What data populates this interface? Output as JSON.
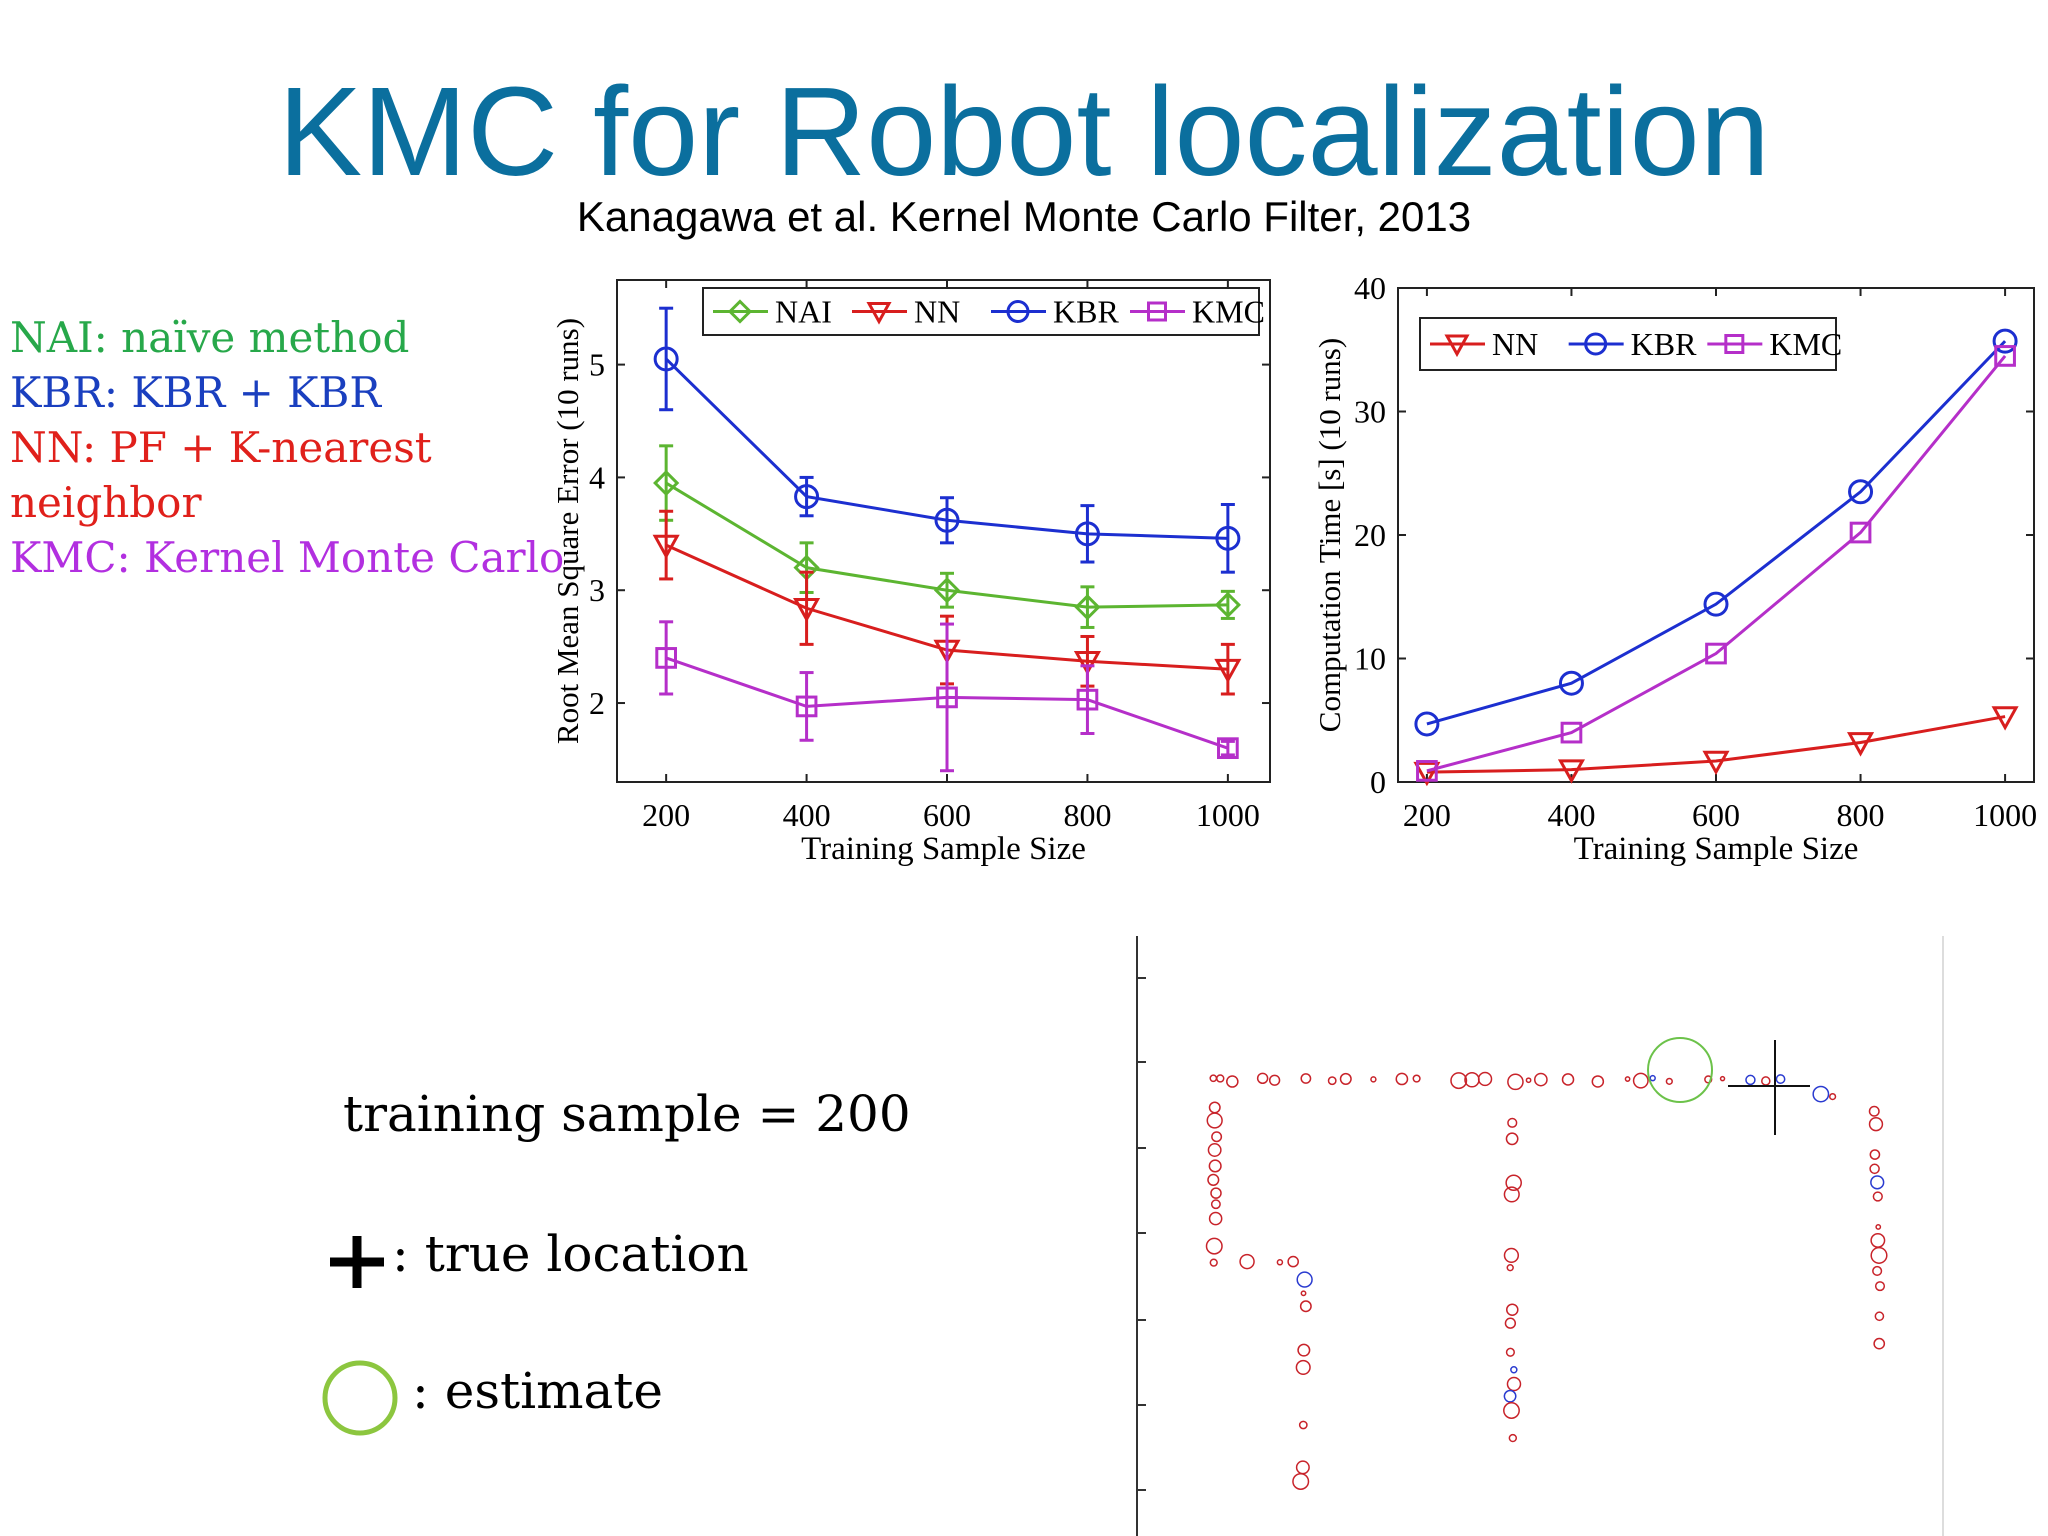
{
  "slide": {
    "title": "KMC for Robot localization",
    "subtitle": "Kanagawa et al. Kernel Monte Carlo Filter, 2013"
  },
  "methods": [
    {
      "text": "NAI:  naïve method",
      "color": "#27a84a"
    },
    {
      "text": " KBR: KBR + KBR",
      "color": "#1a3fbf"
    },
    {
      "text": "NN: PF + K-nearest",
      "color": "#e0201b"
    },
    {
      "text": "neighbor",
      "color": "#e0201b"
    },
    {
      "text": "KMC: Kernel Monte Carlo",
      "color": "#b22fe0"
    }
  ],
  "chart_data": [
    {
      "type": "line",
      "xlabel": "Training Sample Size",
      "ylabel": "Root Mean Square Error (10 runs)",
      "x": [
        200,
        400,
        600,
        800,
        1000
      ],
      "xlim": [
        130,
        1060
      ],
      "ylim": [
        1.3,
        5.75
      ],
      "xticks": [
        200,
        400,
        600,
        800,
        1000
      ],
      "yticks": [
        2,
        3,
        4,
        5
      ],
      "legend": "top",
      "series": [
        {
          "name": "NAI",
          "marker": "diamond",
          "color": "#5cb531",
          "values": [
            3.95,
            3.2,
            3.0,
            2.85,
            2.87
          ],
          "err": [
            0.33,
            0.22,
            0.15,
            0.18,
            0.12
          ]
        },
        {
          "name": "NN",
          "marker": "triangle",
          "color": "#d81e1e",
          "values": [
            3.4,
            2.84,
            2.47,
            2.37,
            2.3
          ],
          "err": [
            0.3,
            0.32,
            0.3,
            0.22,
            0.22
          ]
        },
        {
          "name": "KBR",
          "marker": "circle",
          "color": "#1c2fd0",
          "values": [
            5.05,
            3.83,
            3.62,
            3.5,
            3.46
          ],
          "err": [
            0.45,
            0.17,
            0.2,
            0.25,
            0.3
          ]
        },
        {
          "name": "KMC",
          "marker": "square",
          "color": "#b52fc9",
          "values": [
            2.4,
            1.97,
            2.05,
            2.03,
            1.6
          ],
          "err": [
            0.32,
            0.3,
            0.65,
            0.3,
            0.06
          ]
        }
      ]
    },
    {
      "type": "line",
      "xlabel": "Training Sample Size",
      "ylabel": "Computation Time [s] (10 runs)",
      "x": [
        200,
        400,
        600,
        800,
        1000
      ],
      "xlim": [
        160,
        1040
      ],
      "ylim": [
        0,
        40
      ],
      "xticks": [
        200,
        400,
        600,
        800,
        1000
      ],
      "yticks": [
        0,
        10,
        20,
        30,
        40
      ],
      "legend": "top-left",
      "series": [
        {
          "name": "NN",
          "marker": "triangle",
          "color": "#d81e1e",
          "values": [
            0.8,
            1.0,
            1.7,
            3.2,
            5.3
          ]
        },
        {
          "name": "KBR",
          "marker": "circle",
          "color": "#1c2fd0",
          "values": [
            4.7,
            8.0,
            14.4,
            23.5,
            35.7
          ]
        },
        {
          "name": "KMC",
          "marker": "square",
          "color": "#b52fc9",
          "values": [
            0.9,
            4.0,
            10.4,
            20.2,
            34.5
          ]
        }
      ]
    }
  ],
  "figure_legend": {
    "sample_text": "training sample  = 200",
    "true_location_text": ": true location",
    "estimate_text": ":  estimate"
  }
}
